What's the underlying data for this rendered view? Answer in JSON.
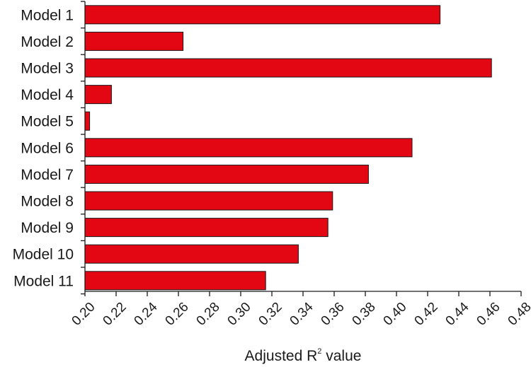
{
  "chart_data": {
    "type": "bar",
    "orientation": "horizontal",
    "categories": [
      "Model 1",
      "Model 2",
      "Model 3",
      "Model 4",
      "Model 5",
      "Model 6",
      "Model 7",
      "Model 8",
      "Model 9",
      "Model 10",
      "Model 11"
    ],
    "values": [
      0.428,
      0.263,
      0.461,
      0.217,
      0.203,
      0.41,
      0.382,
      0.359,
      0.356,
      0.337,
      0.316
    ],
    "xlim": [
      0.2,
      0.48
    ],
    "xticks": [
      "0.20",
      "0.22",
      "0.24",
      "0.26",
      "0.28",
      "0.30",
      "0.32",
      "0.34",
      "0.36",
      "0.38",
      "0.40",
      "0.42",
      "0.44",
      "0.46",
      "0.48"
    ],
    "xlabel": {
      "main": "Adjusted R",
      "superscript": "2",
      "suffix": " value"
    },
    "ylabel": "",
    "title": "",
    "grid": false,
    "bar_color": "#e30613",
    "bar_edge_color": "#1a1a1a"
  }
}
